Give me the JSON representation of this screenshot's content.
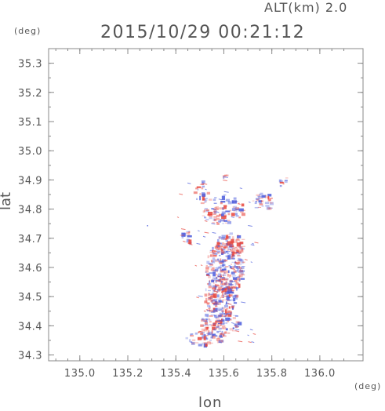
{
  "header": {
    "alt_label": "ALT(km) 2.0",
    "datetime": "2015/10/29 00:21:12"
  },
  "chart_data": {
    "type": "heatmap",
    "xlabel": "lon",
    "ylabel": "lat",
    "x_unit": "(deg)",
    "y_unit": "(deg)",
    "xlim": [
      134.87,
      136.18
    ],
    "ylim": [
      34.28,
      35.35
    ],
    "x_ticks": [
      "135.0",
      "135.2",
      "135.4",
      "135.6",
      "135.8",
      "136.0"
    ],
    "y_ticks": [
      "34.3",
      "34.4",
      "34.5",
      "34.6",
      "34.7",
      "34.8",
      "34.9",
      "35.0",
      "35.1",
      "35.2",
      "35.3"
    ],
    "grid": false,
    "colors": {
      "positive": "#e8453c",
      "negative": "#4a5bdc",
      "frame": "#888888"
    }
  }
}
